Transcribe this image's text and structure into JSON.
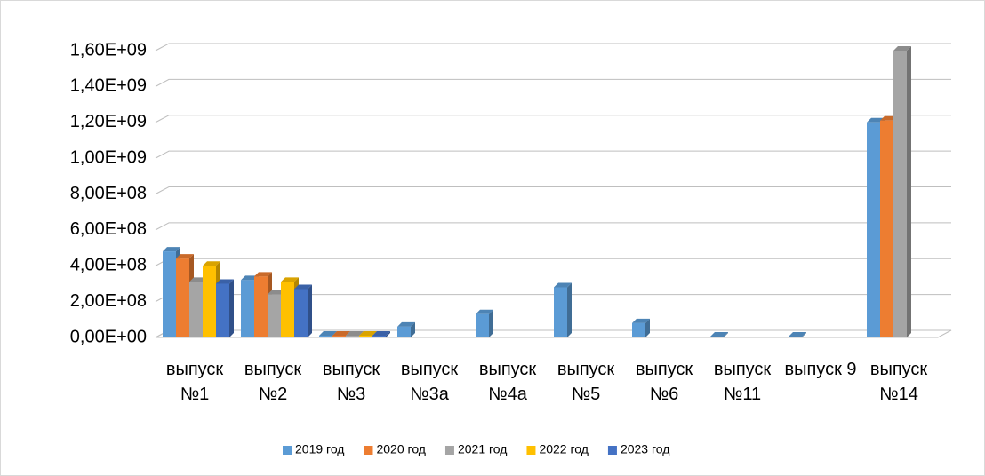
{
  "chart_data": {
    "type": "bar3d",
    "categories": [
      "выпуск №1",
      "выпуск №2",
      "выпуск №3",
      "выпуск №3а",
      "выпуск №4а",
      "выпуск №5",
      "выпуск №6",
      "выпуск №11",
      "выпуск 9",
      "выпуск №14"
    ],
    "series": [
      {
        "name": "2019 год",
        "color": "#5b9bd5",
        "values": [
          480000000,
          320000000,
          10000000,
          60000000,
          130000000,
          280000000,
          80000000,
          5000000,
          5000000,
          1200000000
        ]
      },
      {
        "name": "2020 год",
        "color": "#ed7d31",
        "values": [
          440000000,
          340000000,
          10000000,
          null,
          null,
          null,
          null,
          null,
          null,
          1210000000
        ]
      },
      {
        "name": "2021 год",
        "color": "#a5a5a5",
        "values": [
          310000000,
          240000000,
          10000000,
          null,
          null,
          null,
          null,
          null,
          null,
          1600000000
        ]
      },
      {
        "name": "2022 год",
        "color": "#ffc000",
        "values": [
          400000000,
          310000000,
          10000000,
          null,
          null,
          null,
          null,
          null,
          null,
          null
        ]
      },
      {
        "name": "2023 год",
        "color": "#4472c4",
        "values": [
          300000000,
          270000000,
          10000000,
          null,
          null,
          null,
          null,
          null,
          null,
          null
        ]
      }
    ],
    "ylim": [
      0,
      1600000000
    ],
    "yticks": [
      {
        "value": 0,
        "label": "0,00E+00"
      },
      {
        "value": 200000000,
        "label": "2,00E+08"
      },
      {
        "value": 400000000,
        "label": "4,00E+08"
      },
      {
        "value": 600000000,
        "label": "6,00E+08"
      },
      {
        "value": 800000000,
        "label": "8,00E+08"
      },
      {
        "value": 1000000000,
        "label": "1,00E+09"
      },
      {
        "value": 1200000000,
        "label": "1,20E+09"
      },
      {
        "value": 1400000000,
        "label": "1,40E+09"
      },
      {
        "value": 1600000000,
        "label": "1,60E+09"
      }
    ],
    "grid": true,
    "legend": "bottom"
  }
}
